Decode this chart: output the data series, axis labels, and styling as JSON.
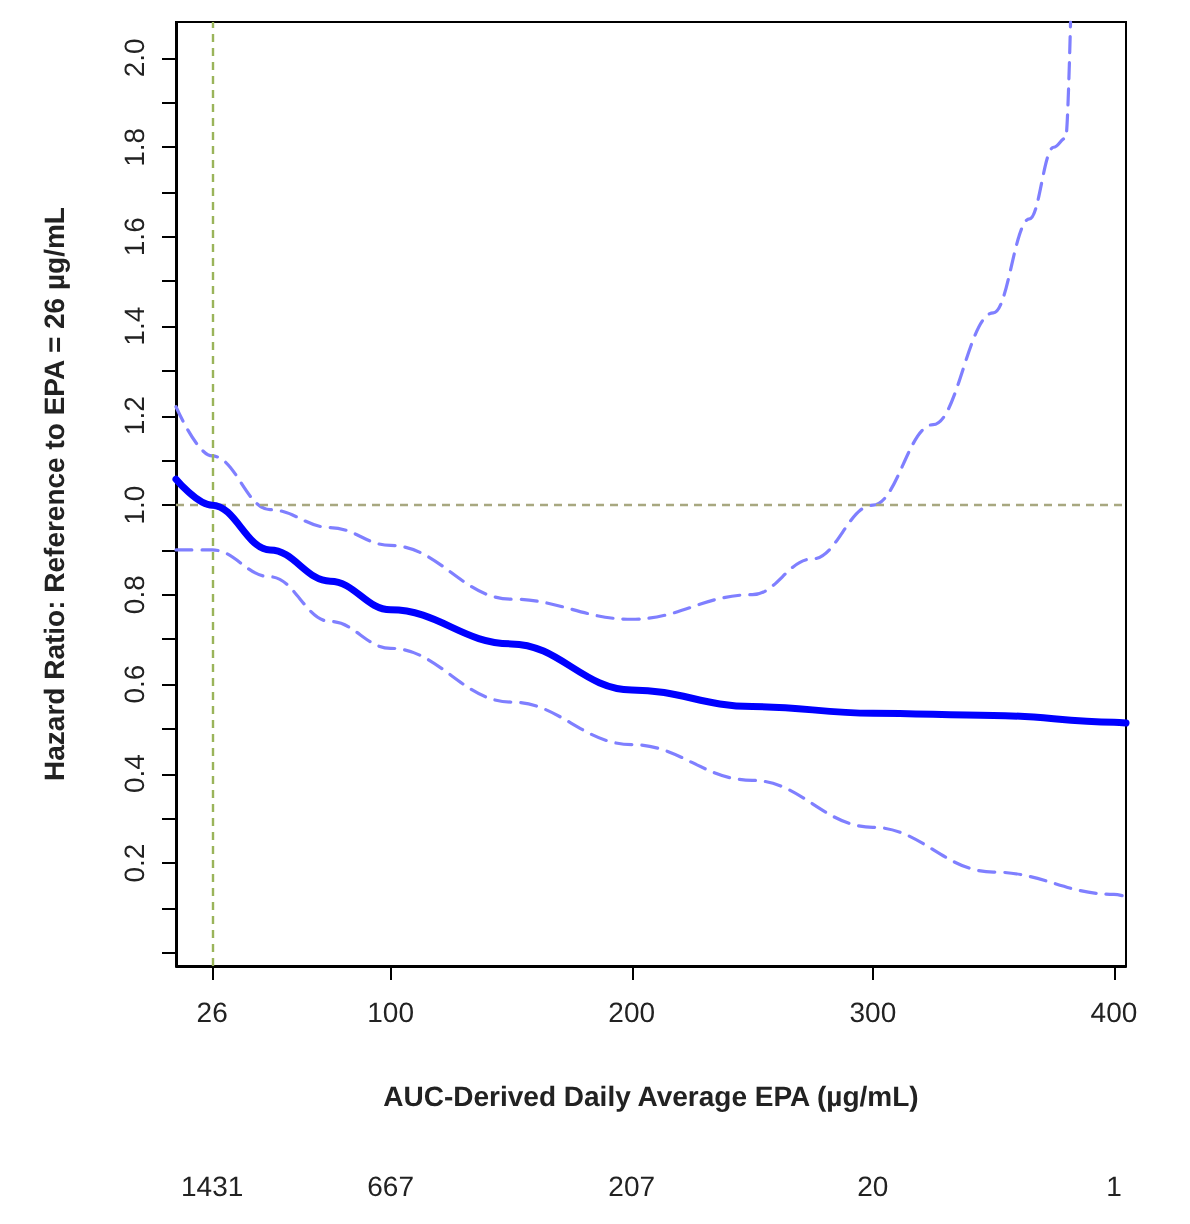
{
  "chart_data": {
    "type": "line",
    "xlabel": "AUC-Derived Daily Average EPA (µg/mL)",
    "ylabel": "Hazard Ratio: Reference to EPA = 26 µg/mL",
    "xlim": [
      11,
      405
    ],
    "xticks": [
      26,
      100,
      200,
      300,
      400
    ],
    "ylim": [
      -0.03,
      2.08
    ],
    "yticks": [
      {
        "value": 0,
        "label": null
      },
      {
        "value": 0.1,
        "label": null
      },
      0.2,
      {
        "value": 0.3,
        "label": null
      },
      0.4,
      {
        "value": 0.5,
        "label": null
      },
      0.6,
      {
        "value": 0.7,
        "label": null
      },
      0.8,
      {
        "value": 0.9,
        "label": null
      },
      {
        "value": 1.0,
        "label": "1.0"
      },
      {
        "value": 1.1,
        "label": null
      },
      1.2,
      {
        "value": 1.3,
        "label": null
      },
      1.4,
      {
        "value": 1.5,
        "label": null
      },
      1.6,
      {
        "value": 1.7,
        "label": null
      },
      1.8,
      {
        "value": 1.9,
        "label": null
      },
      {
        "value": 2.0,
        "label": "2.0"
      }
    ],
    "grid": false,
    "marker": "none",
    "series": [
      {
        "color": "#7f7fff",
        "line_style": "dashed",
        "x": [
          11,
          26,
          50,
          75,
          100,
          150,
          200,
          250,
          275,
          300,
          325,
          350,
          365,
          375,
          380,
          382
        ],
        "values": [
          1.22,
          1.11,
          0.99,
          0.95,
          0.91,
          0.79,
          0.745,
          0.8,
          0.88,
          1.0,
          1.18,
          1.43,
          1.64,
          1.8,
          1.82,
          2.08
        ]
      },
      {
        "color": "#7f7fff",
        "line_style": "dashed",
        "x": [
          11,
          26,
          50,
          75,
          100,
          150,
          200,
          250,
          300,
          350,
          400,
          405
        ],
        "values": [
          0.9,
          0.9,
          0.84,
          0.74,
          0.68,
          0.56,
          0.465,
          0.385,
          0.28,
          0.18,
          0.13,
          0.125
        ]
      },
      {
        "color": "#0000ff",
        "line_style": "solid",
        "x": [
          11,
          26,
          50,
          75,
          100,
          150,
          200,
          250,
          300,
          350,
          400,
          405
        ],
        "values": [
          1.058,
          1.0,
          0.9,
          0.83,
          0.766,
          0.69,
          0.587,
          0.55,
          0.535,
          0.53,
          0.515,
          0.513
        ]
      }
    ],
    "ref_lines": [
      {
        "axis": "x",
        "value": 26,
        "color": "#9ab45a",
        "line_style": "dashed"
      },
      {
        "axis": "y",
        "value": 1.0,
        "color": "#a8a880",
        "line_style": "dashed"
      }
    ],
    "annotations": [
      "1431",
      "667",
      "207",
      "20",
      "1"
    ]
  }
}
